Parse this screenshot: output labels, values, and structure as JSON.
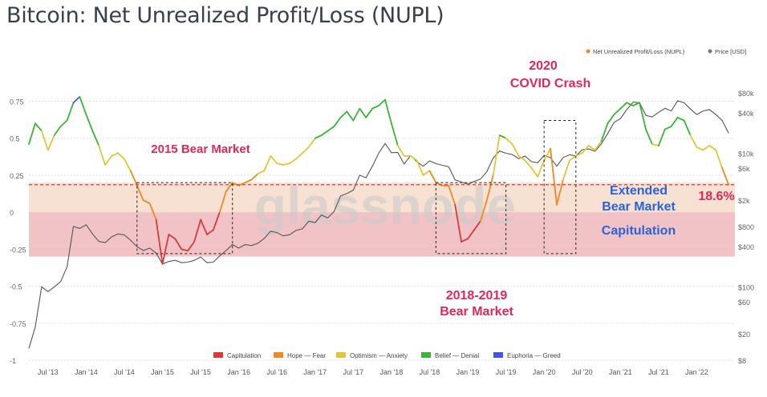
{
  "title": "Bitcoin: Net Unrealized Profit/Loss (NUPL)",
  "colors": {
    "capitulation": "#d93a3a",
    "hope_fear": "#ef8a22",
    "optimism_anxiety": "#e3c43a",
    "belief_denial": "#3ab53a",
    "euphoria_greed": "#4455e0",
    "price": "#555555",
    "annotation_red": "#e0285a",
    "annotation_blue": "#2a63d8",
    "band_orange": "#f6dccb",
    "band_red": "#eeb8bd"
  },
  "legend_top": [
    {
      "label": "Net Unrealized Profit/Loss (NUPL)",
      "color": "#ef8a22"
    },
    {
      "label": "Price [USD]",
      "color": "#777777"
    }
  ],
  "legend_bottom": [
    {
      "label": "Capitulation",
      "color": "#d93a3a"
    },
    {
      "label": "Hope — Fear",
      "color": "#ef8a22"
    },
    {
      "label": "Optimism — Anxiety",
      "color": "#e3c43a"
    },
    {
      "label": "Belief — Denial",
      "color": "#3ab53a"
    },
    {
      "label": "Euphoria — Greed",
      "color": "#4455e0"
    }
  ],
  "watermark": "glassnode",
  "annotations": {
    "bear2015": "2015 Bear Market",
    "covid_line1": "2020",
    "covid_line2": "COVID Crash",
    "bear2018_line1": "2018-2019",
    "bear2018_line2": "Bear Market",
    "extended_line1": "Extended",
    "extended_line2": "Bear Market",
    "capitulation": "Capitulation",
    "current_value": "18.6%"
  },
  "chart_data": {
    "type": "line",
    "x_ticks": [
      "Jul '13",
      "Jan '14",
      "Jul '14",
      "Jan '15",
      "Jul '15",
      "Jan '16",
      "Jul '16",
      "Jan '17",
      "Jul '17",
      "Jan '18",
      "Jul '18",
      "Jan '19",
      "Jul '19",
      "Jan '20",
      "Jul '20",
      "Jan '21",
      "Jul '21",
      "Jan '22"
    ],
    "y_left_ticks": [
      "0.75",
      "0.5",
      "0.25",
      "0",
      "-0.25",
      "-0.5",
      "-0.75",
      "-1"
    ],
    "y_left_range": [
      -1,
      0.85
    ],
    "y_right_ticks": [
      "$80k",
      "$40k",
      "$10k",
      "$6k",
      "$2k",
      "$800",
      "$400",
      "$100",
      "$60",
      "$20",
      "$8"
    ],
    "y_right_scale": "log",
    "threshold_line": 0.186,
    "bands": [
      {
        "name": "Hope — Fear zone",
        "from": 0,
        "to": 0.2
      },
      {
        "name": "Capitulation zone",
        "from": -0.3,
        "to": 0
      }
    ],
    "series": [
      {
        "name": "Net Unrealized Profit/Loss (NUPL)",
        "points": [
          [
            "2013-04",
            0.46
          ],
          [
            "2013-05",
            0.6
          ],
          [
            "2013-06",
            0.55
          ],
          [
            "2013-07",
            0.42
          ],
          [
            "2013-08",
            0.52
          ],
          [
            "2013-09",
            0.58
          ],
          [
            "2013-10",
            0.62
          ],
          [
            "2013-11",
            0.74
          ],
          [
            "2013-12",
            0.78
          ],
          [
            "2014-01",
            0.66
          ],
          [
            "2014-02",
            0.55
          ],
          [
            "2014-03",
            0.45
          ],
          [
            "2014-04",
            0.32
          ],
          [
            "2014-05",
            0.38
          ],
          [
            "2014-06",
            0.4
          ],
          [
            "2014-07",
            0.36
          ],
          [
            "2014-08",
            0.28
          ],
          [
            "2014-09",
            0.18
          ],
          [
            "2014-10",
            0.08
          ],
          [
            "2014-11",
            0.06
          ],
          [
            "2014-12",
            -0.05
          ],
          [
            "2015-01",
            -0.35
          ],
          [
            "2015-02",
            -0.15
          ],
          [
            "2015-03",
            -0.18
          ],
          [
            "2015-04",
            -0.25
          ],
          [
            "2015-05",
            -0.26
          ],
          [
            "2015-06",
            -0.2
          ],
          [
            "2015-07",
            -0.05
          ],
          [
            "2015-08",
            -0.15
          ],
          [
            "2015-09",
            -0.12
          ],
          [
            "2015-10",
            0.0
          ],
          [
            "2015-11",
            0.14
          ],
          [
            "2015-12",
            0.2
          ],
          [
            "2016-01",
            0.18
          ],
          [
            "2016-02",
            0.2
          ],
          [
            "2016-03",
            0.22
          ],
          [
            "2016-04",
            0.26
          ],
          [
            "2016-05",
            0.28
          ],
          [
            "2016-06",
            0.38
          ],
          [
            "2016-07",
            0.33
          ],
          [
            "2016-08",
            0.32
          ],
          [
            "2016-09",
            0.33
          ],
          [
            "2016-10",
            0.36
          ],
          [
            "2016-11",
            0.4
          ],
          [
            "2016-12",
            0.44
          ],
          [
            "2017-01",
            0.5
          ],
          [
            "2017-02",
            0.52
          ],
          [
            "2017-03",
            0.55
          ],
          [
            "2017-04",
            0.58
          ],
          [
            "2017-05",
            0.64
          ],
          [
            "2017-06",
            0.68
          ],
          [
            "2017-07",
            0.62
          ],
          [
            "2017-08",
            0.7
          ],
          [
            "2017-09",
            0.64
          ],
          [
            "2017-10",
            0.7
          ],
          [
            "2017-11",
            0.72
          ],
          [
            "2017-12",
            0.76
          ],
          [
            "2018-01",
            0.6
          ],
          [
            "2018-02",
            0.45
          ],
          [
            "2018-03",
            0.38
          ],
          [
            "2018-04",
            0.38
          ],
          [
            "2018-05",
            0.35
          ],
          [
            "2018-06",
            0.25
          ],
          [
            "2018-07",
            0.28
          ],
          [
            "2018-08",
            0.2
          ],
          [
            "2018-09",
            0.18
          ],
          [
            "2018-10",
            0.18
          ],
          [
            "2018-11",
            0.05
          ],
          [
            "2018-12",
            -0.2
          ],
          [
            "2019-01",
            -0.18
          ],
          [
            "2019-02",
            -0.12
          ],
          [
            "2019-03",
            -0.06
          ],
          [
            "2019-04",
            0.08
          ],
          [
            "2019-05",
            0.25
          ],
          [
            "2019-06",
            0.52
          ],
          [
            "2019-07",
            0.5
          ],
          [
            "2019-08",
            0.46
          ],
          [
            "2019-09",
            0.38
          ],
          [
            "2019-10",
            0.35
          ],
          [
            "2019-11",
            0.3
          ],
          [
            "2019-12",
            0.24
          ],
          [
            "2020-01",
            0.35
          ],
          [
            "2020-02",
            0.43
          ],
          [
            "2020-03",
            0.05
          ],
          [
            "2020-04",
            0.22
          ],
          [
            "2020-05",
            0.35
          ],
          [
            "2020-06",
            0.38
          ],
          [
            "2020-07",
            0.4
          ],
          [
            "2020-08",
            0.45
          ],
          [
            "2020-09",
            0.42
          ],
          [
            "2020-10",
            0.48
          ],
          [
            "2020-11",
            0.6
          ],
          [
            "2020-12",
            0.66
          ],
          [
            "2021-01",
            0.7
          ],
          [
            "2021-02",
            0.74
          ],
          [
            "2021-03",
            0.72
          ],
          [
            "2021-04",
            0.74
          ],
          [
            "2021-05",
            0.56
          ],
          [
            "2021-06",
            0.46
          ],
          [
            "2021-07",
            0.45
          ],
          [
            "2021-08",
            0.56
          ],
          [
            "2021-09",
            0.58
          ],
          [
            "2021-10",
            0.64
          ],
          [
            "2021-11",
            0.62
          ],
          [
            "2021-12",
            0.52
          ],
          [
            "2022-01",
            0.44
          ],
          [
            "2022-02",
            0.42
          ],
          [
            "2022-03",
            0.45
          ],
          [
            "2022-04",
            0.42
          ],
          [
            "2022-05",
            0.3
          ],
          [
            "2022-06",
            0.186
          ]
        ]
      },
      {
        "name": "Price [USD]",
        "points": [
          [
            "2013-04",
            12
          ],
          [
            "2013-05",
            25
          ],
          [
            "2013-06",
            100
          ],
          [
            "2013-07",
            85
          ],
          [
            "2013-08",
            100
          ],
          [
            "2013-09",
            120
          ],
          [
            "2013-10",
            200
          ],
          [
            "2013-11",
            800
          ],
          [
            "2013-12",
            750
          ],
          [
            "2014-01",
            850
          ],
          [
            "2014-02",
            620
          ],
          [
            "2014-03",
            480
          ],
          [
            "2014-04",
            460
          ],
          [
            "2014-05",
            560
          ],
          [
            "2014-06",
            620
          ],
          [
            "2014-07",
            600
          ],
          [
            "2014-08",
            500
          ],
          [
            "2014-09",
            400
          ],
          [
            "2014-10",
            350
          ],
          [
            "2014-11",
            380
          ],
          [
            "2014-12",
            320
          ],
          [
            "2015-01",
            220
          ],
          [
            "2015-02",
            240
          ],
          [
            "2015-03",
            250
          ],
          [
            "2015-04",
            230
          ],
          [
            "2015-05",
            235
          ],
          [
            "2015-06",
            250
          ],
          [
            "2015-07",
            280
          ],
          [
            "2015-08",
            230
          ],
          [
            "2015-09",
            235
          ],
          [
            "2015-10",
            290
          ],
          [
            "2015-11",
            350
          ],
          [
            "2015-12",
            430
          ],
          [
            "2016-01",
            380
          ],
          [
            "2016-02",
            430
          ],
          [
            "2016-03",
            415
          ],
          [
            "2016-04",
            450
          ],
          [
            "2016-05",
            530
          ],
          [
            "2016-06",
            680
          ],
          [
            "2016-07",
            650
          ],
          [
            "2016-08",
            580
          ],
          [
            "2016-09",
            605
          ],
          [
            "2016-10",
            700
          ],
          [
            "2016-11",
            740
          ],
          [
            "2016-12",
            960
          ],
          [
            "2017-01",
            920
          ],
          [
            "2017-02",
            1190
          ],
          [
            "2017-03",
            1080
          ],
          [
            "2017-04",
            1350
          ],
          [
            "2017-05",
            2300
          ],
          [
            "2017-06",
            2500
          ],
          [
            "2017-07",
            2800
          ],
          [
            "2017-08",
            4700
          ],
          [
            "2017-09",
            4300
          ],
          [
            "2017-10",
            6400
          ],
          [
            "2017-11",
            10000
          ],
          [
            "2017-12",
            14000
          ],
          [
            "2018-01",
            10200
          ],
          [
            "2018-02",
            10300
          ],
          [
            "2018-03",
            6900
          ],
          [
            "2018-04",
            9200
          ],
          [
            "2018-05",
            7500
          ],
          [
            "2018-06",
            6400
          ],
          [
            "2018-07",
            7700
          ],
          [
            "2018-08",
            7000
          ],
          [
            "2018-09",
            6600
          ],
          [
            "2018-10",
            6300
          ],
          [
            "2018-11",
            4000
          ],
          [
            "2018-12",
            3700
          ],
          [
            "2019-01",
            3450
          ],
          [
            "2019-02",
            3800
          ],
          [
            "2019-03",
            4100
          ],
          [
            "2019-04",
            5300
          ],
          [
            "2019-05",
            8500
          ],
          [
            "2019-06",
            10800
          ],
          [
            "2019-07",
            10000
          ],
          [
            "2019-08",
            9600
          ],
          [
            "2019-09",
            8300
          ],
          [
            "2019-10",
            9100
          ],
          [
            "2019-11",
            7500
          ],
          [
            "2019-12",
            7200
          ],
          [
            "2020-01",
            9300
          ],
          [
            "2020-02",
            8600
          ],
          [
            "2020-03",
            6400
          ],
          [
            "2020-04",
            8600
          ],
          [
            "2020-05",
            9500
          ],
          [
            "2020-06",
            9100
          ],
          [
            "2020-07",
            11300
          ],
          [
            "2020-08",
            11600
          ],
          [
            "2020-09",
            10700
          ],
          [
            "2020-10",
            13800
          ],
          [
            "2020-11",
            19600
          ],
          [
            "2020-12",
            29000
          ],
          [
            "2021-01",
            33000
          ],
          [
            "2021-02",
            45000
          ],
          [
            "2021-03",
            58000
          ],
          [
            "2021-04",
            57000
          ],
          [
            "2021-05",
            37000
          ],
          [
            "2021-06",
            35000
          ],
          [
            "2021-07",
            41000
          ],
          [
            "2021-08",
            47000
          ],
          [
            "2021-09",
            43000
          ],
          [
            "2021-10",
            61000
          ],
          [
            "2021-11",
            57000
          ],
          [
            "2021-12",
            46000
          ],
          [
            "2022-01",
            38000
          ],
          [
            "2022-02",
            43000
          ],
          [
            "2022-03",
            45000
          ],
          [
            "2022-04",
            38000
          ],
          [
            "2022-05",
            31000
          ],
          [
            "2022-06",
            20000
          ]
        ]
      }
    ]
  }
}
